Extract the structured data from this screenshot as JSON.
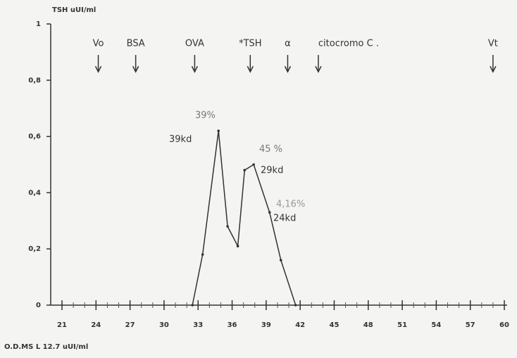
{
  "chart_data": {
    "type": "line",
    "title": "TSH uUI/ml",
    "footnote": "O.D.MS L 12.7 uUI/ml",
    "x": [
      32.5,
      33.4,
      34.8,
      35.6,
      36.5,
      37.1,
      37.9,
      39.3,
      40.3,
      41.6
    ],
    "series": [
      {
        "color": "#333333",
        "values": [
          0,
          0.18,
          0.62,
          0.28,
          0.21,
          0.48,
          0.5,
          0.33,
          0.16,
          0
        ]
      }
    ],
    "xlim": [
      21,
      60
    ],
    "xticks": [
      21,
      24,
      27,
      30,
      33,
      36,
      39,
      42,
      45,
      48,
      51,
      54,
      57,
      60
    ],
    "ylim": [
      0,
      1
    ],
    "yticks": [
      0,
      {
        "value": 0.2,
        "label": "0,2"
      },
      {
        "value": 0.4,
        "label": "0,4"
      },
      {
        "value": 0.6,
        "label": "0,6"
      },
      {
        "value": 0.8,
        "label": "0,8"
      },
      1
    ],
    "markers": [
      {
        "label": "Vo",
        "x": 24.2
      },
      {
        "label": "BSA",
        "x": 27.5
      },
      {
        "label": "OVA",
        "x": 32.7
      },
      {
        "label": "*TSH",
        "x": 37.6
      },
      {
        "label": "α",
        "x": 40.9
      },
      {
        "label": "citocromo C .",
        "x": 43.6
      },
      {
        "label": "Vt",
        "x": 59.0
      }
    ],
    "annotations": [
      "39%",
      "39kd",
      "45 %",
      "29kd",
      "4,16%",
      "24kd"
    ]
  }
}
